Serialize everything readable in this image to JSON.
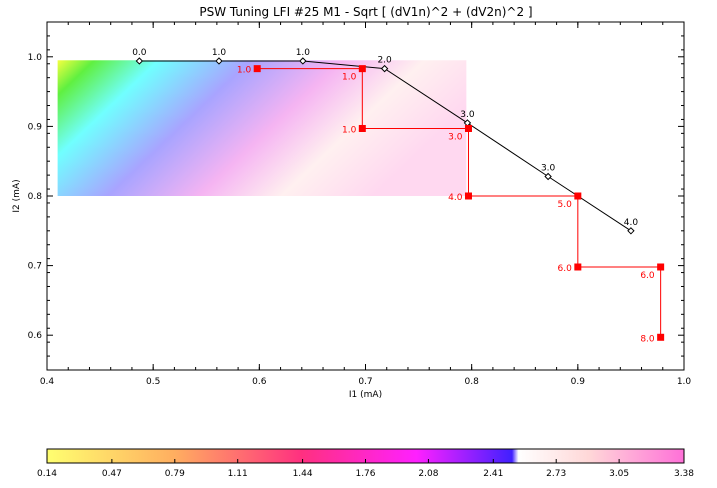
{
  "chart_data": {
    "type": "line",
    "title": "PSW Tuning LFI #25 M1 - Sqrt [ (dV1n)^2 + (dV2n)^2 ]",
    "xlabel": "I1 (mA)",
    "ylabel": "I2 (mA)",
    "xlim": [
      0.4,
      1.0
    ],
    "ylim": [
      0.55,
      1.05
    ],
    "x_ticks": [
      "0.4",
      "0.5",
      "0.6",
      "0.7",
      "0.8",
      "0.9",
      "1.0"
    ],
    "y_ticks": [
      "0.6",
      "0.7",
      "0.8",
      "0.9",
      "1.0"
    ],
    "heatmap_extent": {
      "x": [
        0.41,
        0.795
      ],
      "y": [
        0.8,
        0.995
      ]
    },
    "series": [
      {
        "color": "#000000",
        "marker": "diamond",
        "points": [
          {
            "x": 0.487,
            "y": 0.994,
            "label": "0.0"
          },
          {
            "x": 0.562,
            "y": 0.994,
            "label": "1.0"
          },
          {
            "x": 0.641,
            "y": 0.994,
            "label": "1.0"
          },
          {
            "x": 0.718,
            "y": 0.983,
            "label": "2.0"
          },
          {
            "x": 0.796,
            "y": 0.905,
            "label": "3.0"
          },
          {
            "x": 0.872,
            "y": 0.828,
            "label": "3.0"
          },
          {
            "x": 0.95,
            "y": 0.75,
            "label": "4.0"
          }
        ]
      },
      {
        "color": "#ff0000",
        "marker": "square",
        "points": [
          {
            "x": 0.598,
            "y": 0.983,
            "label": "1.0"
          },
          {
            "x": 0.697,
            "y": 0.983,
            "label": "1.0"
          },
          {
            "x": 0.697,
            "y": 0.897,
            "label": "1.0"
          },
          {
            "x": 0.797,
            "y": 0.897,
            "label": "3.0"
          },
          {
            "x": 0.797,
            "y": 0.8,
            "label": "4.0"
          },
          {
            "x": 0.9,
            "y": 0.8,
            "label": "5.0"
          },
          {
            "x": 0.9,
            "y": 0.698,
            "label": "6.0"
          },
          {
            "x": 0.978,
            "y": 0.698,
            "label": "6.0"
          },
          {
            "x": 0.978,
            "y": 0.597,
            "label": "8.0"
          }
        ]
      }
    ],
    "colorbar": {
      "ticks": [
        "0.14",
        "0.47",
        "0.79",
        "1.11",
        "1.44",
        "1.76",
        "2.08",
        "2.41",
        "2.73",
        "3.05",
        "3.38"
      ],
      "min": 0.14,
      "max": 3.38
    }
  }
}
